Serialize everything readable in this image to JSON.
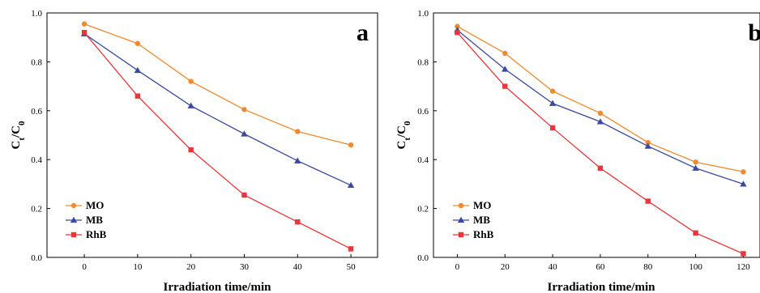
{
  "chart_data": [
    {
      "type": "line",
      "panel_label": "a",
      "xlabel": "Irradiation time/min",
      "ylabel_main": "C",
      "ylabel_sub1": "t",
      "ylabel_mid": "/C",
      "ylabel_sub2": "0",
      "xlim": [
        -7,
        55
      ],
      "ylim": [
        0,
        1.0
      ],
      "x_ticks": [
        0,
        10,
        20,
        30,
        40,
        50
      ],
      "y_ticks": [
        0.0,
        0.2,
        0.4,
        0.6,
        0.8,
        1.0
      ],
      "y_tick_labels": [
        "0.0",
        "0.2",
        "0.4",
        "0.6",
        "0.8",
        "1.0"
      ],
      "grid": false,
      "legend_position": "bottom-left",
      "x": [
        0,
        10,
        20,
        30,
        40,
        50
      ],
      "series": [
        {
          "name": "MO",
          "color": "#f08a30",
          "marker": "circle",
          "values": [
            0.955,
            0.875,
            0.72,
            0.605,
            0.515,
            0.46
          ]
        },
        {
          "name": "MB",
          "color": "#3a4aa0",
          "marker": "triangle",
          "values": [
            0.915,
            0.765,
            0.62,
            0.505,
            0.395,
            0.295
          ]
        },
        {
          "name": "RhB",
          "color": "#e8363a",
          "marker": "square",
          "values": [
            0.92,
            0.66,
            0.44,
            0.255,
            0.145,
            0.035
          ]
        }
      ]
    },
    {
      "type": "line",
      "panel_label": "b",
      "xlabel": "Irradiation time/min",
      "ylabel_main": "C",
      "ylabel_sub1": "t",
      "ylabel_mid": "/C",
      "ylabel_sub2": "0",
      "xlim": [
        -10,
        127
      ],
      "ylim": [
        0,
        1.0
      ],
      "x_ticks": [
        0,
        20,
        40,
        60,
        80,
        100,
        120
      ],
      "y_ticks": [
        0.0,
        0.2,
        0.4,
        0.6,
        0.8,
        1.0
      ],
      "y_tick_labels": [
        "0.0",
        "0.2",
        "0.4",
        "0.6",
        "0.8",
        "1.0"
      ],
      "grid": false,
      "legend_position": "bottom-left",
      "x": [
        0,
        20,
        40,
        60,
        80,
        100,
        120
      ],
      "series": [
        {
          "name": "MO",
          "color": "#f08a30",
          "marker": "circle",
          "values": [
            0.945,
            0.835,
            0.68,
            0.59,
            0.47,
            0.39,
            0.35
          ]
        },
        {
          "name": "MB",
          "color": "#3a4aa0",
          "marker": "triangle",
          "values": [
            0.93,
            0.77,
            0.63,
            0.555,
            0.455,
            0.365,
            0.3
          ]
        },
        {
          "name": "RhB",
          "color": "#e8363a",
          "marker": "square",
          "values": [
            0.92,
            0.7,
            0.53,
            0.365,
            0.23,
            0.1,
            0.015
          ]
        }
      ]
    }
  ]
}
